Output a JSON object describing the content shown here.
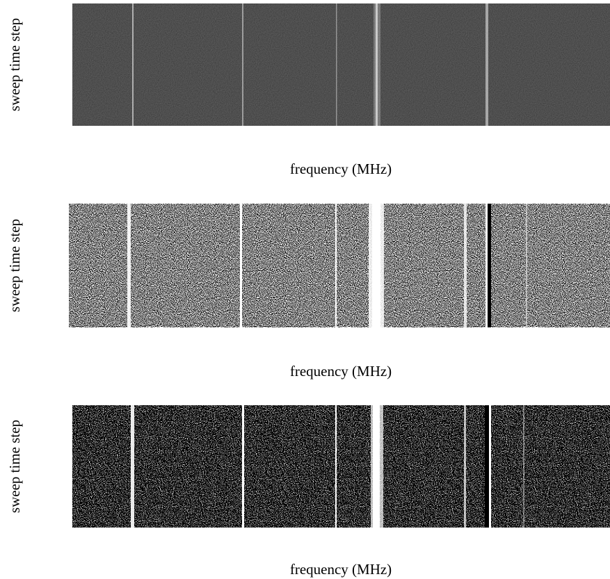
{
  "panels": [
    {
      "y_label": "sweep time step",
      "x_label": "frequency (MHz)"
    },
    {
      "y_label": "sweep time step",
      "x_label": "frequency (MHz)"
    },
    {
      "y_label": "sweep time step",
      "x_label": "frequency (MHz)"
    }
  ]
}
